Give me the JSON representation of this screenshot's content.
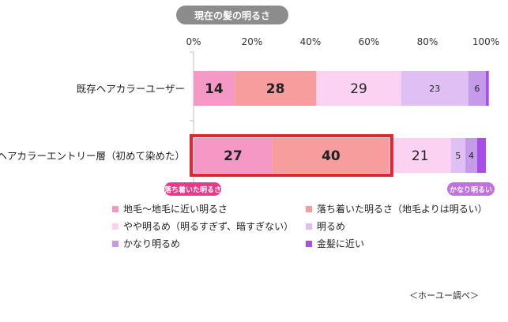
{
  "chart_data": {
    "type": "bar",
    "orientation": "horizontal",
    "stacked": true,
    "title": "現在の髪の明るさ",
    "categories": [
      "既存ヘアカラーユーザー",
      "ヘアカラーエントリー層（初めて染めた）"
    ],
    "series": [
      {
        "name": "地毛〜地毛に近い明るさ",
        "color": "#f598c6",
        "values": [
          14,
          27
        ]
      },
      {
        "name": "落ち着いた明るさ（地毛よりは明るい）",
        "color": "#f79d9d",
        "values": [
          28,
          40
        ]
      },
      {
        "name": "やや明るめ（明るすぎず、暗すぎない）",
        "color": "#fcd2f2",
        "values": [
          29,
          21
        ]
      },
      {
        "name": "明るめ",
        "color": "#e0c0f4",
        "values": [
          23,
          5
        ]
      },
      {
        "name": "かなり明るめ",
        "color": "#c59ae8",
        "values": [
          6,
          4
        ]
      },
      {
        "name": "金髪に近い",
        "color": "#a84ee8",
        "values": [
          1,
          3
        ]
      }
    ],
    "data_labels": [
      [
        "14",
        "28",
        "29",
        "23",
        "6",
        ""
      ],
      [
        "27",
        "40",
        "21",
        "5",
        "4",
        ""
      ]
    ],
    "xlim": [
      0,
      100
    ],
    "x_ticks": [
      "0%",
      "20%",
      "40%",
      "60%",
      "80%",
      "100%"
    ],
    "highlight": {
      "category_index": 1,
      "series_indices": [
        0,
        1
      ],
      "color": "#e0262e"
    },
    "annotations": [
      {
        "text": "落ち着いた明るさ",
        "color": "#e8398b",
        "anchor": "left"
      },
      {
        "text": "かなり明るい",
        "color": "#c070e0",
        "anchor": "right"
      }
    ],
    "legend_position": "bottom"
  },
  "source": "＜ホーユー調べ＞"
}
